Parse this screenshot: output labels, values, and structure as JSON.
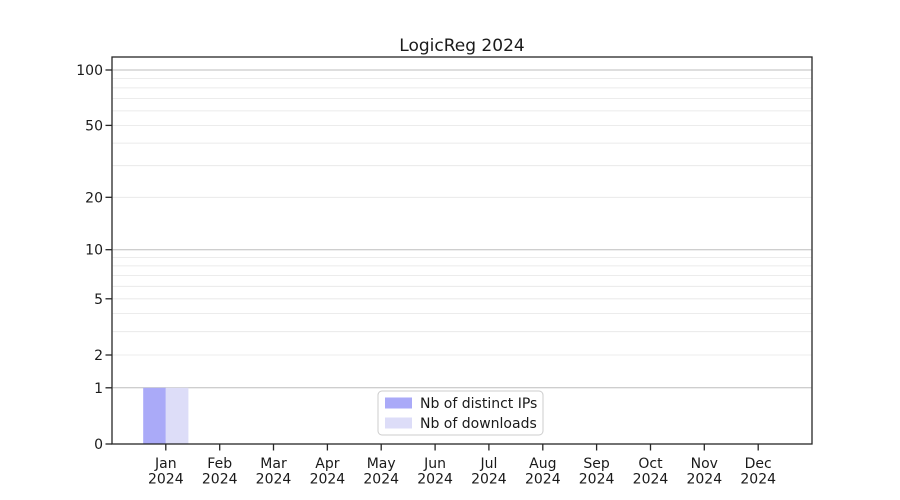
{
  "figure": {
    "title": "LogicReg 2024",
    "background": "#ffffff"
  },
  "chart_data": {
    "type": "bar",
    "title": "LogicReg 2024",
    "months": [
      "Jan",
      "Feb",
      "Mar",
      "Apr",
      "May",
      "Jun",
      "Jul",
      "Aug",
      "Sep",
      "Oct",
      "Nov",
      "Dec"
    ],
    "year": "2024",
    "categories": [
      "Jan 2024",
      "Feb 2024",
      "Mar 2024",
      "Apr 2024",
      "May 2024",
      "Jun 2024",
      "Jul 2024",
      "Aug 2024",
      "Sep 2024",
      "Oct 2024",
      "Nov 2024",
      "Dec 2024"
    ],
    "series": [
      {
        "name": "Nb of distinct IPs",
        "color": "#aaaaf8",
        "values": [
          1,
          0,
          0,
          0,
          0,
          0,
          0,
          0,
          0,
          0,
          0,
          0
        ]
      },
      {
        "name": "Nb of downloads",
        "color": "#ddddf8",
        "values": [
          1,
          0,
          0,
          0,
          0,
          0,
          0,
          0,
          0,
          0,
          0,
          0
        ]
      }
    ],
    "xlabel": "",
    "ylabel": "",
    "y_axis": {
      "scale": "log10(1+y)",
      "tick_values": [
        0,
        1,
        2,
        5,
        10,
        20,
        50,
        100
      ],
      "major_grid_values": [
        1,
        10,
        100
      ],
      "minor_grid_values": [
        2,
        3,
        4,
        5,
        6,
        7,
        8,
        9,
        20,
        30,
        40,
        50,
        60,
        70,
        80,
        90
      ],
      "ylim": [
        0,
        117.6
      ]
    },
    "grid": true,
    "legend": {
      "position": "lower center",
      "entries": [
        "Nb of distinct IPs",
        "Nb of downloads"
      ]
    }
  },
  "colors": {
    "bar_distinct_ips": "#aaaaf8",
    "bar_downloads": "#ddddf8",
    "major_grid": "#bdbdbd",
    "minor_grid": "#e6e6e6",
    "spine": "#262626",
    "text": "#1a1a1a",
    "legend_border": "#cccccc",
    "legend_bg": "#ffffff"
  }
}
